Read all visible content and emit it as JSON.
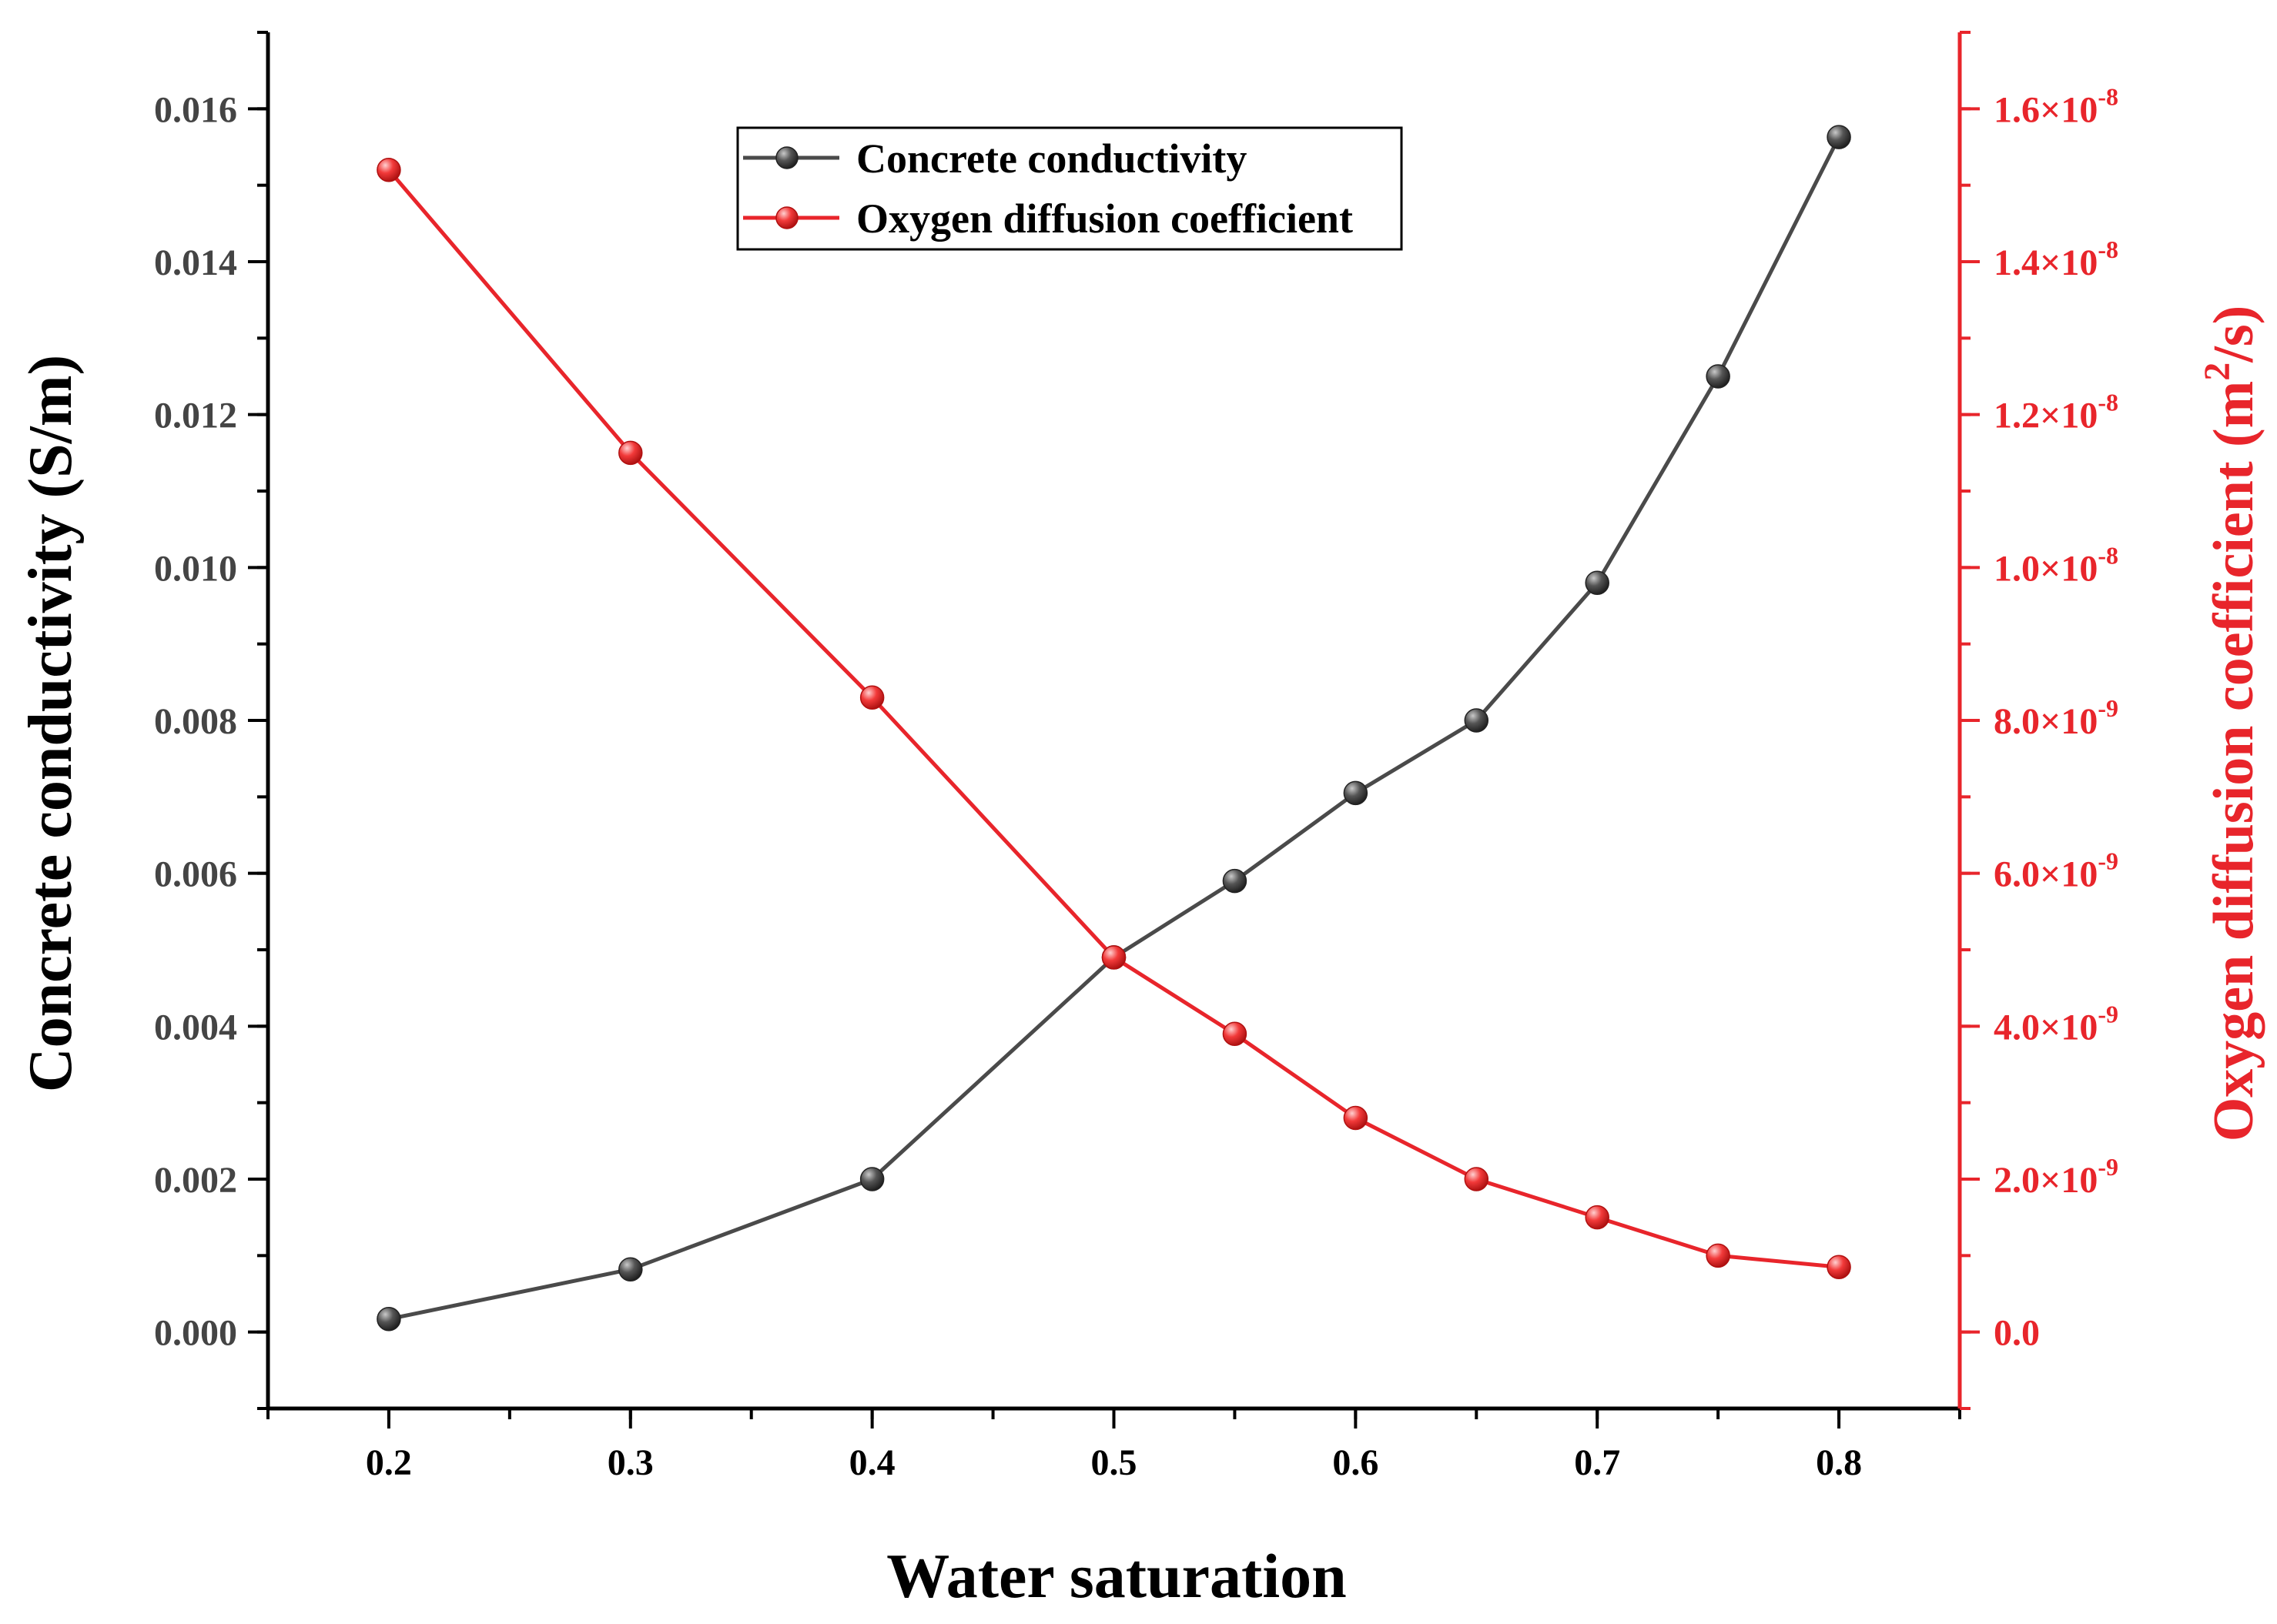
{
  "chart_data": {
    "type": "line",
    "title": "",
    "xlabel": "Water saturation",
    "ylabel": "Concrete conductivity (S/m)",
    "y2label_base": "Oxygen diffusion coefficient (m",
    "y2label_sup": "2",
    "y2label_tail": "/s)",
    "xlim": [
      0.15,
      0.85
    ],
    "ylim": [
      -0.001,
      0.017
    ],
    "y2lim": [
      -1e-09,
      1.7e-08
    ],
    "x_ticks": [
      "0.2",
      "0.3",
      "0.4",
      "0.5",
      "0.6",
      "0.7",
      "0.8"
    ],
    "x_tick_values": [
      0.2,
      0.3,
      0.4,
      0.5,
      0.6,
      0.7,
      0.8
    ],
    "y_ticks": [
      "0.000",
      "0.002",
      "0.004",
      "0.006",
      "0.008",
      "0.010",
      "0.012",
      "0.014",
      "0.016"
    ],
    "y_tick_values": [
      0,
      0.002,
      0.004,
      0.006,
      0.008,
      0.01,
      0.012,
      0.014,
      0.016
    ],
    "y2_tick_values": [
      0,
      2e-09,
      4e-09,
      6e-09,
      8e-09,
      1e-08,
      1.2e-08,
      1.4e-08,
      1.6e-08
    ],
    "y2_ticks": [
      {
        "mant": "0.0",
        "exp": ""
      },
      {
        "mant": "2.0×10",
        "exp": "-9"
      },
      {
        "mant": "4.0×10",
        "exp": "-9"
      },
      {
        "mant": "6.0×10",
        "exp": "-9"
      },
      {
        "mant": "8.0×10",
        "exp": "-9"
      },
      {
        "mant": "1.0×10",
        "exp": "-8"
      },
      {
        "mant": "1.2×10",
        "exp": "-8"
      },
      {
        "mant": "1.4×10",
        "exp": "-8"
      },
      {
        "mant": "1.6×10",
        "exp": "-8"
      }
    ],
    "x": [
      0.2,
      0.3,
      0.4,
      0.5,
      0.55,
      0.6,
      0.65,
      0.7,
      0.75,
      0.8
    ],
    "series": [
      {
        "name": "Concrete conductivity",
        "axis": "left",
        "color": "#4a4a4a",
        "values": [
          0.00017,
          0.00082,
          0.002,
          0.0049,
          0.0059,
          0.00705,
          0.008,
          0.0098,
          0.0125,
          0.01563
        ]
      },
      {
        "name": "Oxygen diffusion coefficient",
        "axis": "right",
        "color": "#e8252b",
        "values": [
          1.52e-08,
          1.15e-08,
          8.3e-09,
          4.9e-09,
          3.9e-09,
          2.8e-09,
          2e-09,
          1.5e-09,
          1e-09,
          8.5e-10
        ]
      }
    ],
    "legend_position": "top-center",
    "grid": false
  }
}
